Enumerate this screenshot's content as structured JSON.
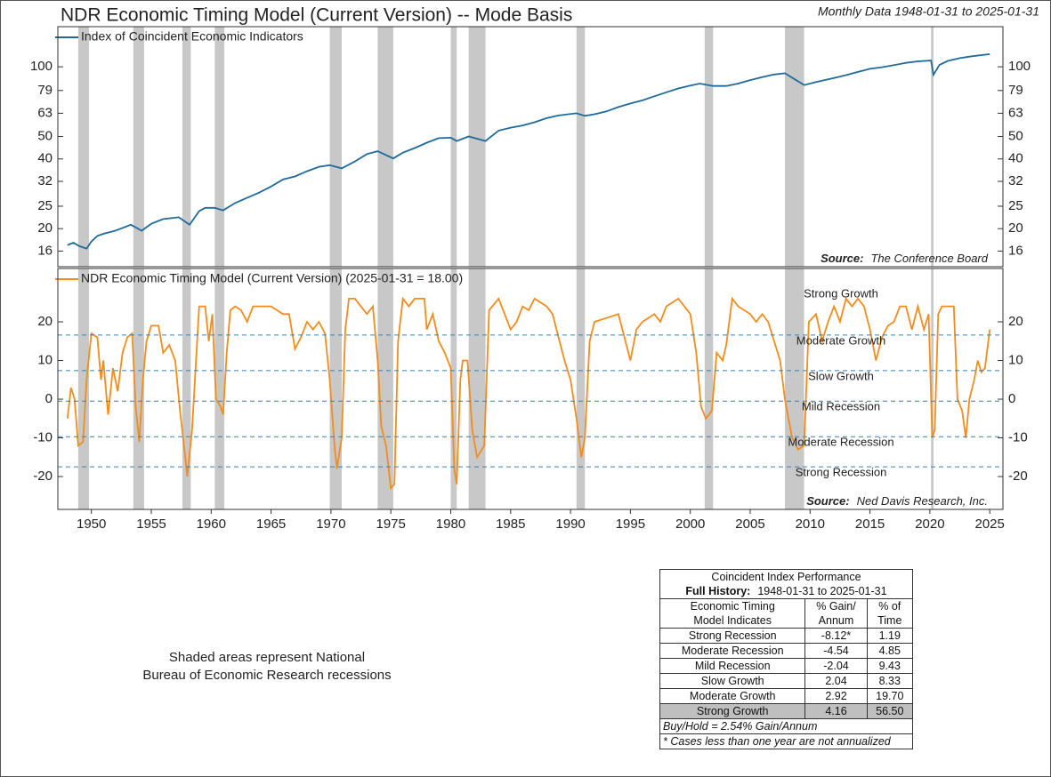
{
  "title": "NDR Economic Timing Model (Current Version) -- Mode Basis",
  "subtitle": "Monthly Data 1948-01-31 to 2025-01-31",
  "recessions": [
    [
      1948.9,
      1949.8
    ],
    [
      1953.5,
      1954.4
    ],
    [
      1957.6,
      1958.3
    ],
    [
      1960.3,
      1961.1
    ],
    [
      1969.9,
      1970.9
    ],
    [
      1973.9,
      1975.2
    ],
    [
      1980.0,
      1980.5
    ],
    [
      1981.5,
      1982.9
    ],
    [
      1990.5,
      1991.2
    ],
    [
      2001.2,
      2001.9
    ],
    [
      2007.9,
      2009.5
    ],
    [
      2020.1,
      2020.3
    ]
  ],
  "chart_data": [
    {
      "type": "line",
      "log_scale": true,
      "ylim": [
        13.7,
        149
      ],
      "yticks": [
        16,
        20,
        25,
        32,
        40,
        50,
        63,
        79,
        100
      ],
      "xlim": [
        1947.2,
        2026.1
      ],
      "source_label": "Source:",
      "source": "The Conference Board",
      "series": [
        {
          "name": "Index of Coincident Economic Indicators",
          "color": "#1f6a9a",
          "x": [
            1948.0,
            1948.5,
            1949.0,
            1949.6,
            1950.0,
            1950.5,
            1951.0,
            1952.0,
            1953.3,
            1954.2,
            1955.0,
            1956.0,
            1957.3,
            1958.2,
            1959.0,
            1959.5,
            1960.3,
            1961.0,
            1962.0,
            1963.0,
            1964.0,
            1965.0,
            1966.0,
            1967.0,
            1968.0,
            1969.0,
            1969.9,
            1970.9,
            1972.0,
            1973.0,
            1973.9,
            1975.2,
            1976.0,
            1977.0,
            1978.0,
            1979.0,
            1980.0,
            1980.5,
            1981.5,
            1982.9,
            1984.0,
            1985.0,
            1986.0,
            1987.0,
            1988.0,
            1989.0,
            1990.5,
            1991.2,
            1992.0,
            1993.0,
            1994.0,
            1995.0,
            1996.0,
            1997.0,
            1998.0,
            1999.0,
            2000.0,
            2000.8,
            2001.9,
            2003.0,
            2004.0,
            2005.0,
            2006.0,
            2007.0,
            2007.9,
            2009.5,
            2010.5,
            2012.0,
            2013.0,
            2014.0,
            2015.0,
            2016.0,
            2017.0,
            2018.0,
            2019.0,
            2020.1,
            2020.3,
            2020.8,
            2021.5,
            2022.5,
            2023.5,
            2025.0
          ],
          "values": [
            17,
            17.4,
            16.8,
            16.4,
            17.6,
            18.6,
            19,
            19.6,
            20.8,
            19.6,
            21,
            22,
            22.4,
            20.8,
            23.8,
            24.6,
            24.6,
            24,
            25.8,
            27.2,
            28.6,
            30.4,
            32.6,
            33.6,
            35.4,
            37,
            37.6,
            36.4,
            39,
            42,
            43.2,
            40.2,
            42.6,
            44.6,
            47,
            49.2,
            49.4,
            47.8,
            50,
            47.8,
            53,
            54.6,
            55.8,
            57.6,
            60,
            61.6,
            63,
            61.4,
            62.4,
            64.2,
            67,
            69.4,
            71.6,
            74.6,
            77.6,
            80.6,
            83,
            84.6,
            82.6,
            82.6,
            84.6,
            87.6,
            90.2,
            92.6,
            93.8,
            83.4,
            86,
            89.4,
            92,
            95,
            98,
            99.6,
            101.6,
            104,
            105.6,
            106.4,
            92.4,
            102,
            106,
            109,
            111,
            113.4
          ]
        }
      ]
    },
    {
      "type": "line",
      "ylim": [
        -28.5,
        33.8
      ],
      "yticks": [
        -20,
        -10,
        0,
        10,
        20
      ],
      "xlim": [
        1947.2,
        2026.1
      ],
      "xticks": [
        1950,
        1955,
        1960,
        1965,
        1970,
        1975,
        1980,
        1985,
        1990,
        1995,
        2000,
        2005,
        2010,
        2015,
        2020,
        2025
      ],
      "source_label": "Source:",
      "source": "Ned Davis Research, Inc.",
      "dashed_levels": [
        16.6,
        7.4,
        -0.5,
        -9.7,
        -17.5
      ],
      "zone_labels": [
        "Strong Growth",
        "Moderate Growth",
        "Slow Growth",
        "Mild Recession",
        "Moderate Recession",
        "Strong Recession"
      ],
      "series": [
        {
          "name": "NDR Economic Timing Model (Current Version) (2025-01-31 = 18.00)",
          "color": "#f28c1c",
          "x": [
            1948.0,
            1948.3,
            1948.6,
            1948.9,
            1949.3,
            1949.6,
            1950.0,
            1950.5,
            1950.8,
            1951.0,
            1951.4,
            1951.8,
            1952.2,
            1952.6,
            1953.0,
            1953.4,
            1953.7,
            1954.0,
            1954.3,
            1954.6,
            1955.0,
            1955.6,
            1956.0,
            1956.5,
            1957.0,
            1957.4,
            1957.8,
            1958.0,
            1958.4,
            1958.7,
            1959.0,
            1959.5,
            1959.8,
            1960.1,
            1960.4,
            1960.8,
            1961.0,
            1961.3,
            1961.6,
            1962.0,
            1962.5,
            1963.0,
            1963.5,
            1964.0,
            1965.0,
            1966.0,
            1966.5,
            1967.0,
            1967.5,
            1968.0,
            1968.5,
            1969.0,
            1969.5,
            1969.9,
            1970.3,
            1970.5,
            1970.9,
            1971.2,
            1971.5,
            1972.0,
            1973.0,
            1973.5,
            1973.9,
            1974.2,
            1974.6,
            1975.0,
            1975.3,
            1975.6,
            1976.0,
            1976.5,
            1977.0,
            1977.8,
            1978.0,
            1978.5,
            1979.0,
            1979.5,
            1980.0,
            1980.3,
            1980.5,
            1980.8,
            1981.0,
            1981.4,
            1981.8,
            1982.2,
            1982.8,
            1983.2,
            1984.0,
            1984.5,
            1985.0,
            1985.5,
            1986.0,
            1986.5,
            1987.0,
            1988.0,
            1988.5,
            1989.0,
            1989.5,
            1990.0,
            1990.5,
            1990.9,
            1991.2,
            1991.6,
            1992.0,
            1993.0,
            1994.0,
            1995.0,
            1995.5,
            1996.0,
            1997.0,
            1997.5,
            1998.0,
            1999.0,
            1999.5,
            2000.0,
            2000.5,
            2000.9,
            2001.3,
            2001.8,
            2002.2,
            2002.7,
            2003.0,
            2003.5,
            2004.0,
            2005.0,
            2005.5,
            2006.0,
            2006.5,
            2007.0,
            2007.5,
            2007.9,
            2008.5,
            2009.0,
            2009.5,
            2009.9,
            2010.5,
            2011.0,
            2011.5,
            2012.0,
            2012.5,
            2013.0,
            2013.5,
            2014.0,
            2014.5,
            2015.0,
            2015.5,
            2016.0,
            2016.5,
            2017.0,
            2017.5,
            2018.0,
            2018.5,
            2019.0,
            2019.5,
            2019.9,
            2020.2,
            2020.4,
            2020.7,
            2021.0,
            2021.5,
            2022.0,
            2022.3,
            2022.7,
            2023.0,
            2023.3,
            2023.7,
            2024.0,
            2024.3,
            2024.6,
            2025.0
          ],
          "values": [
            -5,
            3,
            0,
            -12,
            -11,
            5,
            17,
            16,
            5,
            10,
            -4,
            8,
            2,
            12,
            16,
            17,
            -2,
            -11,
            5,
            15,
            19,
            19,
            12,
            14,
            10,
            -3,
            -14,
            -20,
            -8,
            8,
            24,
            24,
            15,
            22,
            0,
            -2,
            -4,
            12,
            23,
            24,
            23,
            20,
            24,
            24,
            24,
            22,
            22,
            13,
            16,
            20,
            18,
            20,
            17,
            5,
            -12,
            -18,
            -10,
            18,
            26,
            26,
            22,
            24,
            10,
            -7,
            -12,
            -23,
            -22,
            15,
            26,
            24,
            26,
            26,
            18,
            22,
            15,
            12,
            8,
            -18,
            -22,
            5,
            10,
            10,
            -8,
            -15,
            -12,
            23,
            26,
            22,
            18,
            20,
            24,
            23,
            26,
            24,
            22,
            16,
            10,
            5,
            -5,
            -15,
            -10,
            15,
            20,
            21,
            22,
            10,
            18,
            20,
            22,
            20,
            24,
            26,
            24,
            22,
            12,
            -2,
            -5,
            -3,
            12,
            10,
            14,
            26,
            24,
            22,
            20,
            22,
            20,
            15,
            10,
            0,
            -10,
            -13,
            -12,
            20,
            22,
            15,
            20,
            24,
            20,
            26,
            24,
            26,
            24,
            18,
            10,
            16,
            19,
            20,
            24,
            24,
            18,
            24,
            18,
            22,
            -10,
            -8,
            22,
            24,
            24,
            24,
            0,
            -3,
            -10,
            0,
            5,
            10,
            7,
            8,
            18
          ]
        }
      ]
    }
  ],
  "note": [
    "Shaded areas represent National",
    "Bureau of Economic Research recessions"
  ],
  "table": {
    "title": "Coincident Index Performance",
    "subtitle_label": "Full History:",
    "subtitle": "1948-01-31 to 2025-01-31",
    "header": [
      [
        "Economic Timing",
        "Model Indicates"
      ],
      [
        "% Gain/",
        "Annum"
      ],
      [
        "% of",
        "Time"
      ]
    ],
    "rows": [
      [
        "Strong Recession",
        "-8.12*",
        "1.19"
      ],
      [
        "Moderate Recession",
        "-4.54",
        "4.85"
      ],
      [
        "Mild Recession",
        "-2.04",
        "9.43"
      ],
      [
        "Slow Growth",
        "2.04",
        "8.33"
      ],
      [
        "Moderate Growth",
        "2.92",
        "19.70"
      ],
      [
        "Strong Growth",
        "4.16",
        "56.50"
      ]
    ],
    "highlight_row": 5,
    "footnotes": [
      "Buy/Hold = 2.54% Gain/Annum",
      "* Cases less than one year are not annualized"
    ]
  }
}
